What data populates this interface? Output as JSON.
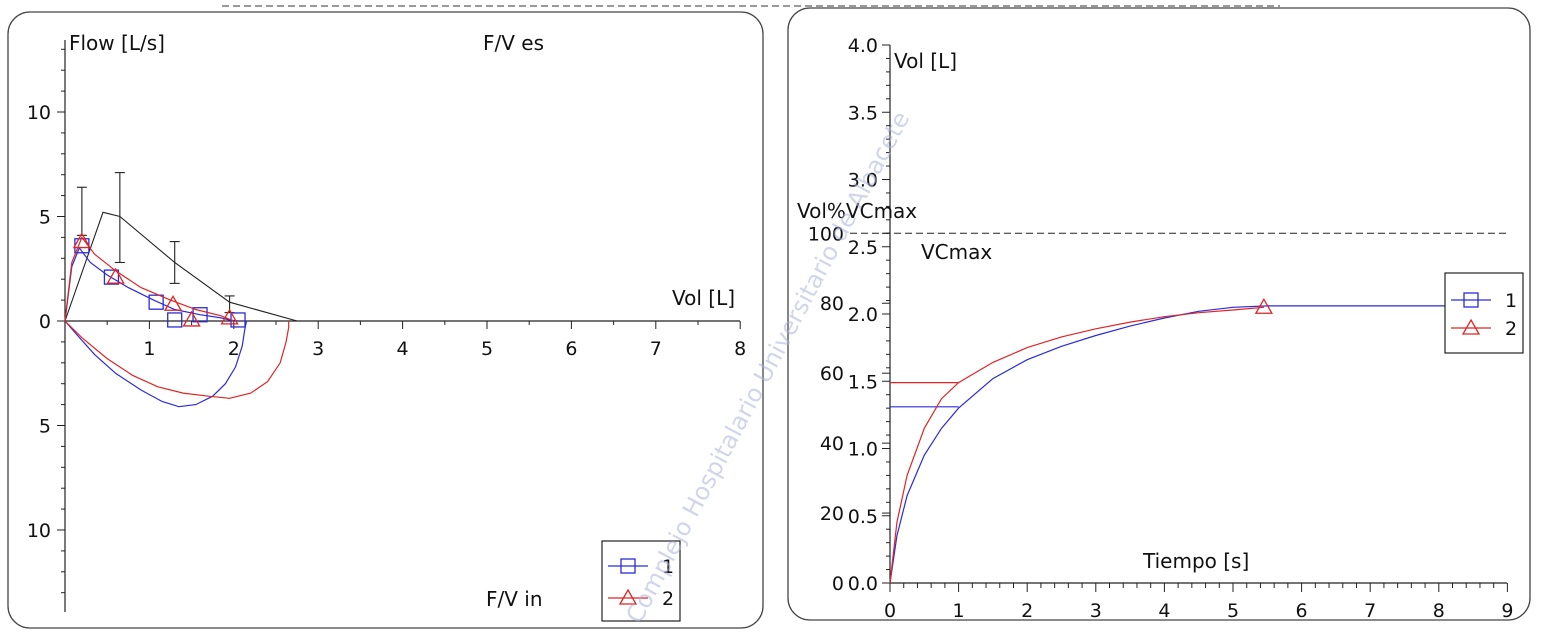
{
  "watermark": "Complejo Hospitalario Universitario de Albacete",
  "colors": {
    "series_1": "#2b2bd9",
    "series_2": "#e02424",
    "predicted": "#222222",
    "frame": "#444444"
  },
  "chart_data": [
    {
      "type": "line",
      "panel": "flow-volume",
      "title_top": "F/V es",
      "title_bottom": "F/V in",
      "ylabel": "Flow [L/s]",
      "xlabel": "Vol [L]",
      "xlim": [
        0,
        8
      ],
      "ylim": [
        -14,
        14
      ],
      "x_ticks": [
        "1",
        "2",
        "3",
        "4",
        "5",
        "6",
        "7",
        "8"
      ],
      "y_ticks": [
        {
          "value": 10,
          "label": "10"
        },
        {
          "value": 5,
          "label": "5"
        },
        {
          "value": 0,
          "label": "0"
        },
        {
          "value": -5,
          "label": "5"
        },
        {
          "value": -10,
          "label": "10"
        }
      ],
      "legend": [
        "1",
        "2"
      ],
      "predicted": {
        "x": [
          0,
          0.45,
          0.65,
          1.3,
          1.95,
          2.75
        ],
        "y": [
          0,
          5.2,
          5.0,
          2.8,
          0.9,
          0
        ],
        "error_bars": [
          {
            "x": 0.2,
            "low": 4.1,
            "high": 6.4
          },
          {
            "x": 0.65,
            "low": 2.8,
            "high": 7.1
          },
          {
            "x": 1.3,
            "low": 1.8,
            "high": 3.8
          },
          {
            "x": 1.95,
            "low": 0.4,
            "high": 1.2
          }
        ]
      },
      "series": [
        {
          "name": "1",
          "expiratory": {
            "x": [
              0,
              0.08,
              0.17,
              0.3,
              0.5,
              0.75,
              1.05,
              1.3,
              1.6,
              1.85,
              1.95,
              2.05
            ],
            "y": [
              0,
              2.6,
              3.5,
              2.8,
              2.2,
              1.6,
              1.0,
              0.55,
              0.3,
              0.15,
              0.05,
              0
            ]
          },
          "inspiratory": {
            "x": [
              0,
              0.15,
              0.35,
              0.6,
              0.9,
              1.15,
              1.35,
              1.55,
              1.75,
              1.9,
              2.02,
              2.1,
              2.13,
              2.15
            ],
            "y": [
              0,
              -0.7,
              -1.6,
              -2.5,
              -3.3,
              -3.85,
              -4.1,
              -4.0,
              -3.6,
              -3.0,
              -2.2,
              -1.2,
              -0.4,
              0
            ]
          },
          "markers": {
            "x": [
              0.2,
              0.55,
              1.08,
              1.3,
              1.6,
              2.05
            ],
            "y": [
              3.6,
              2.1,
              0.9,
              0.05,
              0.3,
              0.05
            ]
          }
        },
        {
          "name": "2",
          "expiratory": {
            "x": [
              0,
              0.08,
              0.2,
              0.35,
              0.6,
              0.9,
              1.25,
              1.55,
              1.85,
              2.0
            ],
            "y": [
              0,
              2.8,
              4.0,
              3.2,
              2.4,
              1.6,
              1.0,
              0.55,
              0.25,
              0
            ]
          },
          "inspiratory": {
            "x": [
              0,
              0.2,
              0.5,
              0.8,
              1.1,
              1.4,
              1.7,
              1.95,
              2.2,
              2.4,
              2.55,
              2.62,
              2.65,
              2.65
            ],
            "y": [
              0,
              -0.8,
              -1.8,
              -2.6,
              -3.15,
              -3.45,
              -3.6,
              -3.7,
              -3.45,
              -2.9,
              -2.0,
              -1.0,
              -0.3,
              0
            ]
          },
          "markers": {
            "x": [
              0.2,
              0.6,
              1.28,
              1.5,
              1.95
            ],
            "y": [
              3.8,
              2.1,
              0.8,
              0.05,
              0.15
            ]
          }
        }
      ]
    },
    {
      "type": "line",
      "panel": "volume-time",
      "ylabel": "Vol [L]",
      "ylabel_secondary": "Vol%VCmax",
      "xlabel": "Tiempo [s]",
      "reference_label": "VCmax",
      "xlim": [
        0,
        9
      ],
      "ylim": [
        0,
        4
      ],
      "x_ticks": [
        "0",
        "1",
        "2",
        "3",
        "4",
        "5",
        "6",
        "7",
        "8",
        "9"
      ],
      "y_ticks": [
        "0.0",
        "0.5",
        "1.0",
        "1.5",
        "2.0",
        "2.5",
        "3.0",
        "3.5",
        "4.0"
      ],
      "y2_ticks": [
        {
          "value": 0,
          "label": "0"
        },
        {
          "value": 20,
          "label": "20"
        },
        {
          "value": 40,
          "label": "40"
        },
        {
          "value": 60,
          "label": "60"
        },
        {
          "value": 80,
          "label": "80"
        },
        {
          "value": 100,
          "label": "100"
        }
      ],
      "y2_max_at_vol": 2.6,
      "legend": [
        "1",
        "2"
      ],
      "series": [
        {
          "name": "1",
          "x": [
            0,
            0.1,
            0.25,
            0.5,
            0.75,
            1.0,
            1.5,
            2.0,
            2.5,
            3.0,
            3.5,
            4.0,
            4.5,
            5.0,
            5.5,
            6.0,
            7.0,
            8.0,
            9.0
          ],
          "y": [
            0,
            0.35,
            0.65,
            0.95,
            1.15,
            1.3,
            1.52,
            1.66,
            1.76,
            1.84,
            1.91,
            1.97,
            2.02,
            2.05,
            2.06,
            2.06,
            2.06,
            2.06,
            2.06
          ],
          "fev1_value": 1.31,
          "marker_x": [
            8.3
          ],
          "marker_y": [
            2.06
          ]
        },
        {
          "name": "2",
          "x": [
            0,
            0.1,
            0.25,
            0.5,
            0.75,
            1.0,
            1.5,
            2.0,
            2.5,
            3.0,
            3.5,
            4.0,
            4.5,
            5.0,
            5.45
          ],
          "y": [
            0,
            0.45,
            0.8,
            1.15,
            1.37,
            1.49,
            1.64,
            1.75,
            1.83,
            1.89,
            1.94,
            1.98,
            2.01,
            2.03,
            2.05
          ],
          "fev1_value": 1.49,
          "marker_x": [
            5.45
          ],
          "marker_y": [
            2.05
          ]
        }
      ]
    }
  ]
}
